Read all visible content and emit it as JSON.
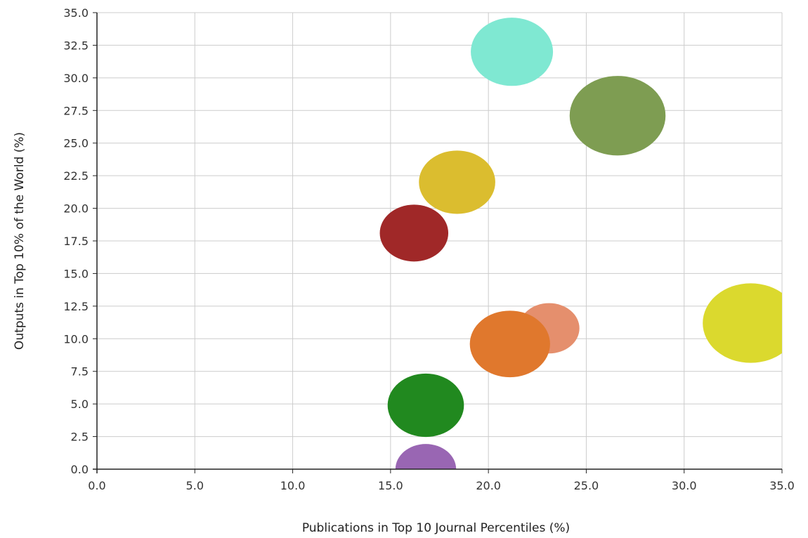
{
  "chart_data": {
    "type": "bubble",
    "xlabel": "Publications in Top 10 Journal Percentiles (%)",
    "ylabel": "Outputs in Top 10% of the World (%)",
    "xlim": [
      0,
      35
    ],
    "ylim": [
      0,
      35
    ],
    "x_ticks": [
      "0.0",
      "5.0",
      "10.0",
      "15.0",
      "20.0",
      "25.0",
      "30.0",
      "35.0"
    ],
    "y_ticks": [
      "0.0",
      "2.5",
      "5.0",
      "7.5",
      "10.0",
      "12.5",
      "15.0",
      "17.5",
      "20.0",
      "22.5",
      "25.0",
      "27.5",
      "30.0",
      "32.5",
      "35.0"
    ],
    "grid": true,
    "points": [
      {
        "x": 21.2,
        "y": 32.0,
        "size": 2.1,
        "color": "#7fe8d2"
      },
      {
        "x": 26.6,
        "y": 27.1,
        "size": 2.45,
        "color": "#7e9d52"
      },
      {
        "x": 18.4,
        "y": 22.0,
        "size": 1.95,
        "color": "#dbbd2f"
      },
      {
        "x": 16.2,
        "y": 18.1,
        "size": 1.75,
        "color": "#a02828"
      },
      {
        "x": 23.1,
        "y": 10.8,
        "size": 1.55,
        "color": "#e58f6d"
      },
      {
        "x": 33.4,
        "y": 11.2,
        "size": 2.45,
        "color": "#dbd92e"
      },
      {
        "x": 21.1,
        "y": 9.6,
        "size": 2.05,
        "color": "#e0782d"
      },
      {
        "x": 16.8,
        "y": 4.9,
        "size": 1.95,
        "color": "#21891f"
      },
      {
        "x": 16.8,
        "y": 0.0,
        "size": 1.55,
        "color": "#9966b3"
      }
    ]
  }
}
